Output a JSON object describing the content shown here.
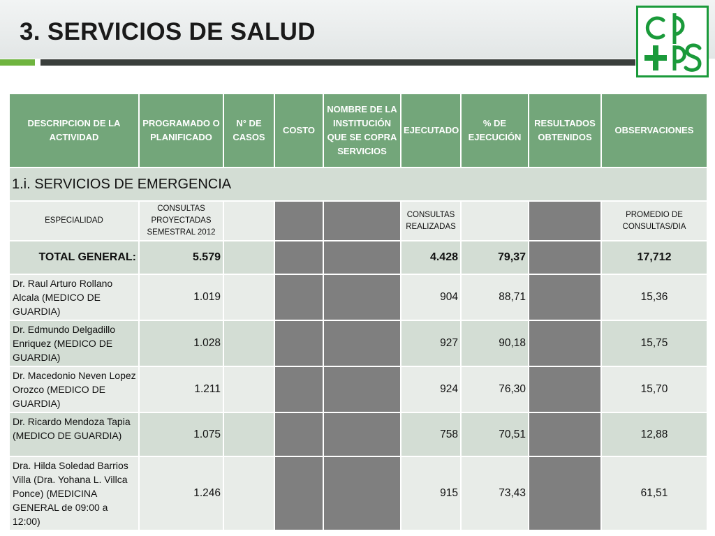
{
  "title": "3. SERVICIOS DE SALUD",
  "logo": {
    "icon": "cpps-logo-icon",
    "color": "#1a9a3a"
  },
  "colors": {
    "header": "#73a67a",
    "row_dark": "#d3ddd4",
    "row_light": "#e8ece8",
    "blocked": "#7f7f7f",
    "accent": "#6fb43f"
  },
  "table": {
    "headers": [
      "DESCRIPCION DE LA ACTIVIDAD",
      "PROGRAMADO O PLANIFICADO",
      "N° DE CASOS",
      "COSTO",
      "NOMBRE DE LA INSTITUCIÓN QUE SE COPRA SERVICIOS",
      "EJECUTADO",
      "% DE EJECUCIÓN",
      "RESULTADOS OBTENIDOS",
      "OBSERVACIONES"
    ],
    "section": "1.i. SERVICIOS DE EMERGENCIA",
    "sub": {
      "descripcion": "ESPECIALIDAD",
      "programado": "CONSULTAS PROYECTADAS SEMESTRAL 2012",
      "ejecutado": "CONSULTAS REALIZADAS",
      "observaciones": "PROMEDIO DE CONSULTAS/DIA"
    },
    "total": {
      "label": "TOTAL GENERAL:",
      "programado": "5.579",
      "ejecutado": "4.428",
      "porcentaje": "79,37",
      "observaciones": "17,712"
    },
    "rows": [
      {
        "name": "Dr. Raul Arturo Rollano Alcala (MEDICO DE GUARDIA)",
        "programado": "1.019",
        "ejecutado": "904",
        "porcentaje": "88,71",
        "observaciones": "15,36"
      },
      {
        "name": "Dr. Edmundo Delgadillo Enriquez (MEDICO DE GUARDIA)",
        "programado": "1.028",
        "ejecutado": "927",
        "porcentaje": "90,18",
        "observaciones": "15,75"
      },
      {
        "name": "Dr. Macedonio Neven Lopez Orozco (MEDICO DE GUARDIA)",
        "programado": "1.211",
        "ejecutado": "924",
        "porcentaje": "76,30",
        "observaciones": "15,70"
      },
      {
        "name": "Dr. Ricardo Mendoza Tapia (MEDICO DE GUARDIA)",
        "programado": "1.075",
        "ejecutado": "758",
        "porcentaje": "70,51",
        "observaciones": "12,88"
      },
      {
        "name": "Dra. Hilda Soledad Barrios Villa (Dra. Yohana L. Villca Ponce) (MEDICINA GENERAL de 09:00 a 12:00)",
        "programado": "1.246",
        "ejecutado": "915",
        "porcentaje": "73,43",
        "observaciones": "61,51"
      }
    ]
  }
}
